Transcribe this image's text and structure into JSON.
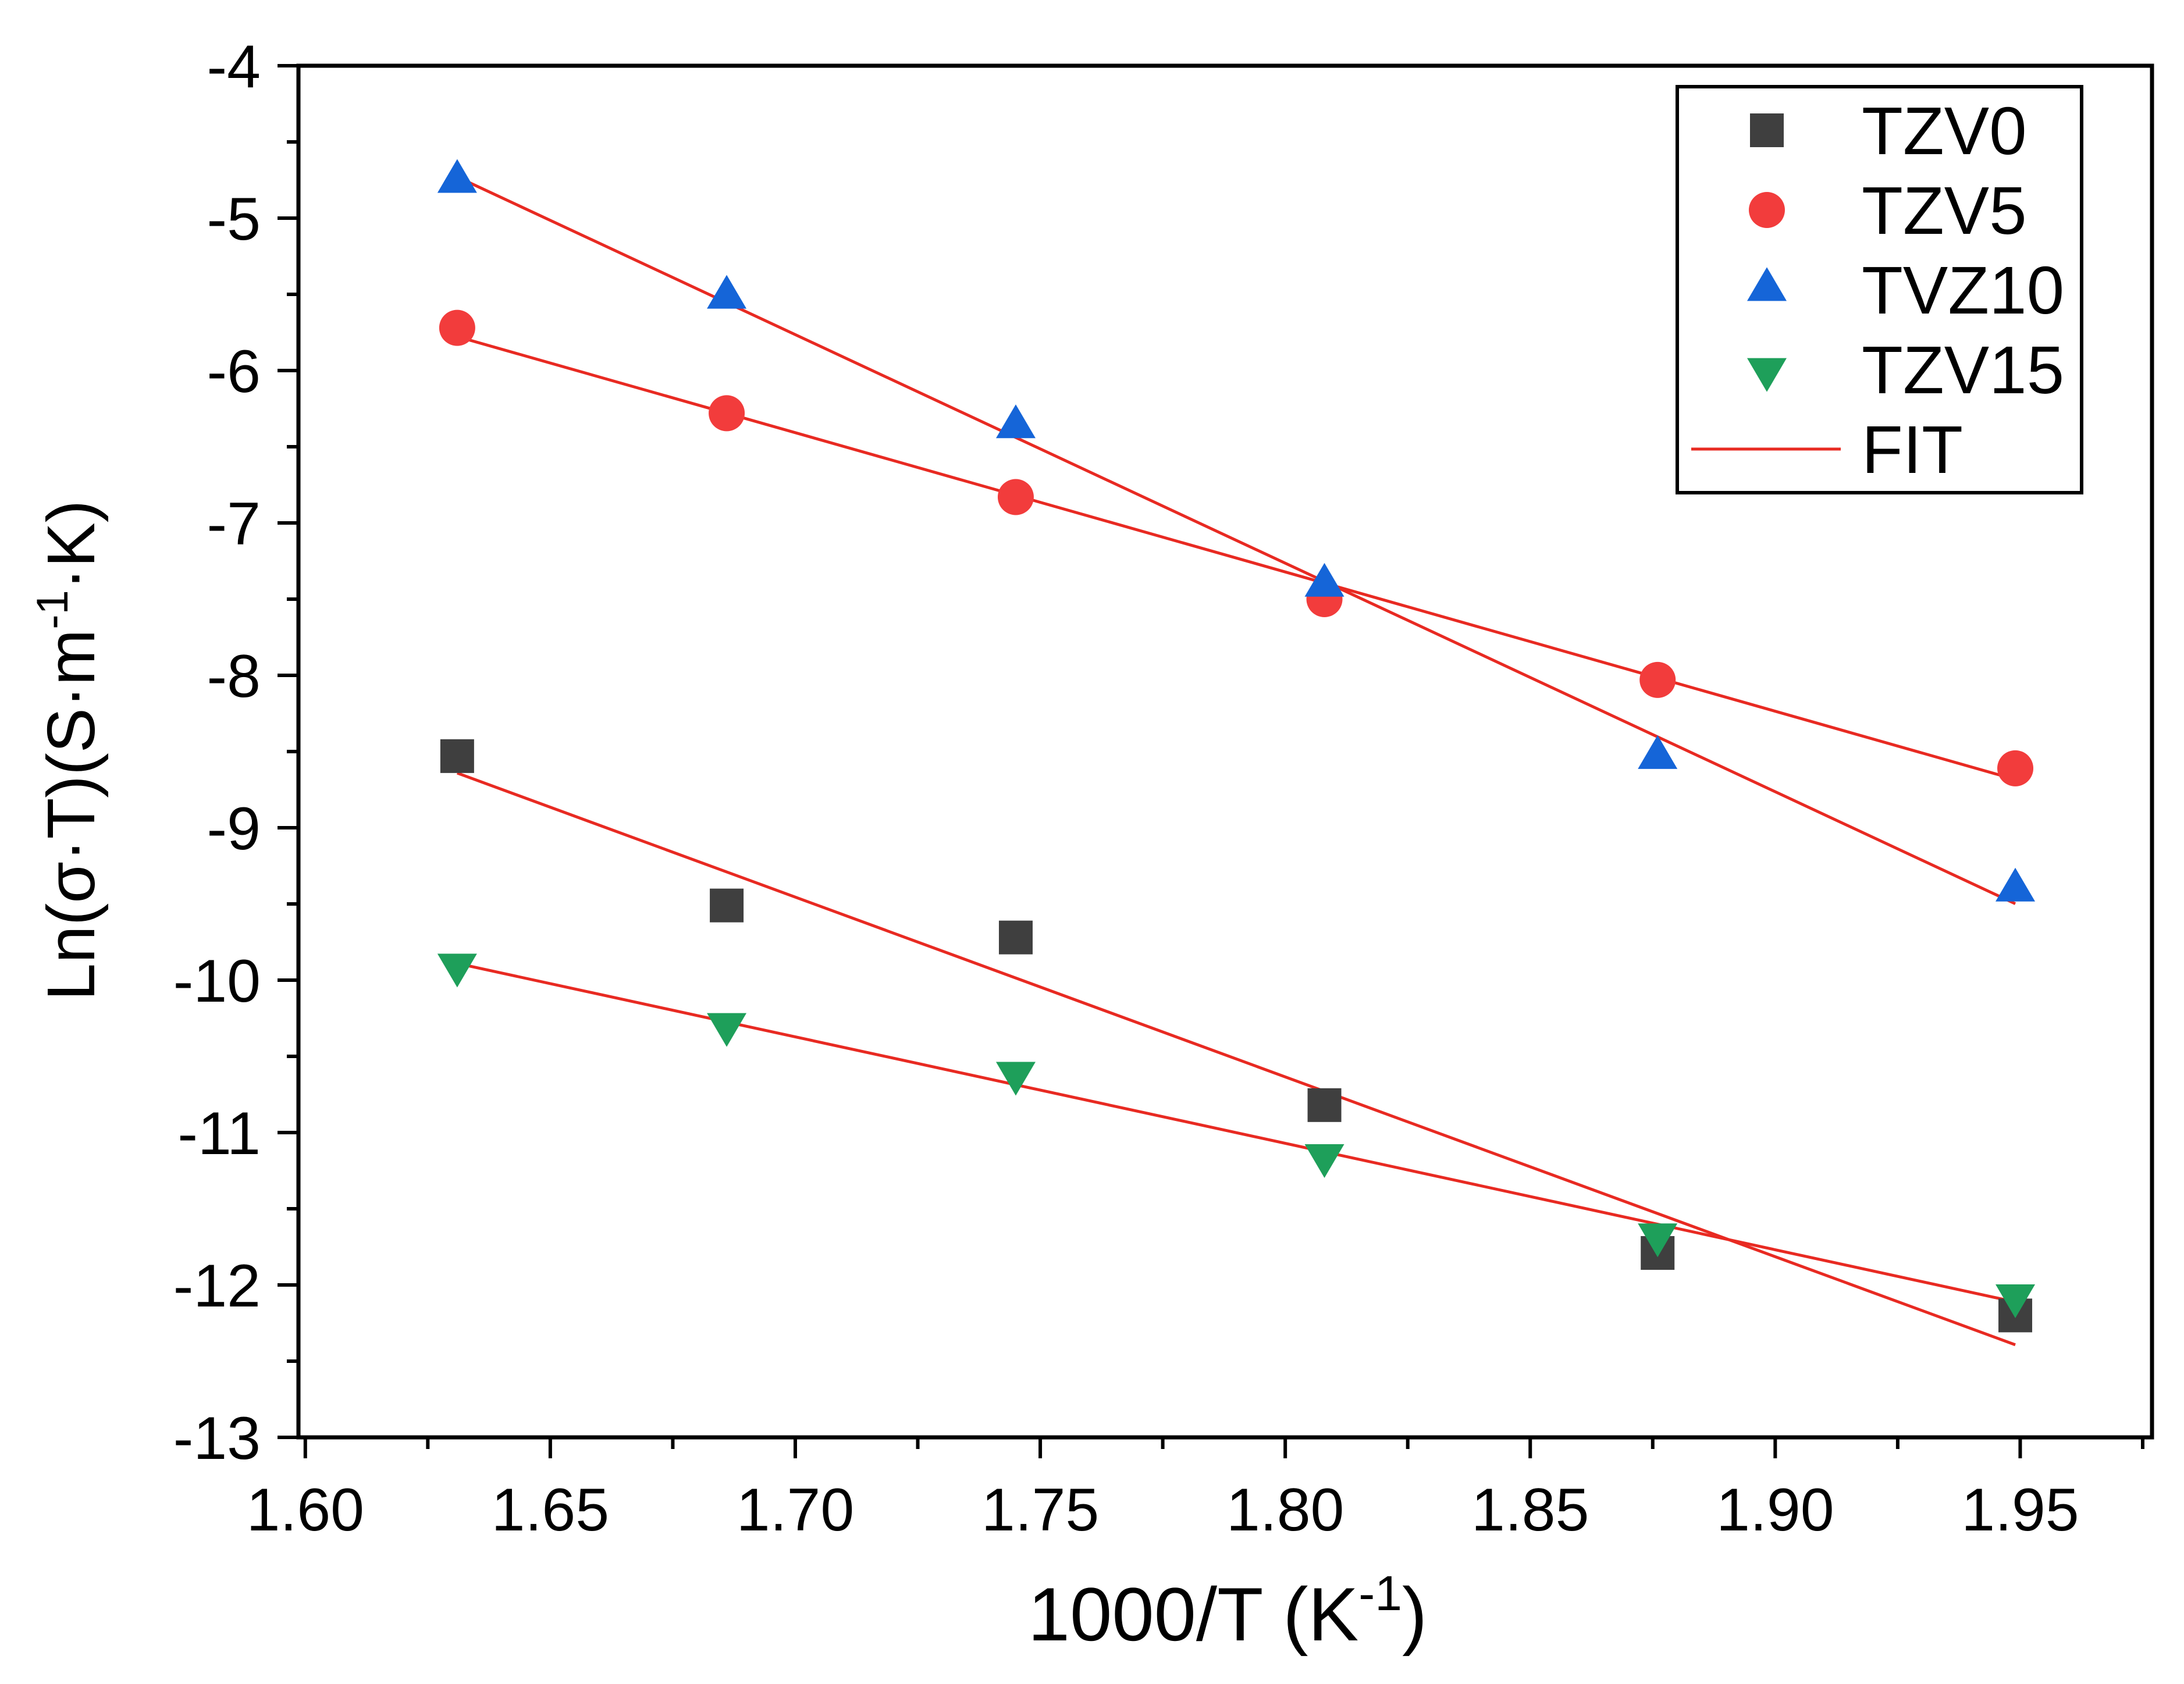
{
  "chart_data": {
    "type": "scatter",
    "xlabel": {
      "text": "1000/T (K",
      "sup": "-1",
      "end": ")"
    },
    "ylabel": {
      "text": "Ln(σ·T)(S·m",
      "sup": "-1",
      "end": "·K)"
    },
    "xlim": [
      1.5986,
      1.9769
    ],
    "ylim": [
      -13,
      -4
    ],
    "x_ticks": [
      1.6,
      1.65,
      1.7,
      1.75,
      1.8,
      1.85,
      1.9,
      1.95
    ],
    "x_tick_labels": [
      "1.60",
      "1.65",
      "1.70",
      "1.75",
      "1.80",
      "1.85",
      "1.90",
      "1.95"
    ],
    "x_minor_step": 0.025,
    "y_ticks": [
      -4,
      -5,
      -6,
      -7,
      -8,
      -9,
      -10,
      -11,
      -12,
      -13
    ],
    "y_tick_labels": [
      "-4",
      "-5",
      "-6",
      "-7",
      "-8",
      "-9",
      "-10",
      "-11",
      "-12",
      "-13"
    ],
    "y_minor_step": 0.5,
    "grid": false,
    "legend_position": "top-right",
    "x": [
      1.631,
      1.686,
      1.745,
      1.808,
      1.876,
      1.949
    ],
    "series": [
      {
        "name": "TZV0",
        "marker": "square",
        "color": "#3f3f3f",
        "values": [
          -8.53,
          -9.51,
          -9.72,
          -10.82,
          -11.79,
          -12.2
        ]
      },
      {
        "name": "TZV5",
        "marker": "circle",
        "color": "#f23c3c",
        "values": [
          -5.72,
          -6.28,
          -6.83,
          -7.5,
          -8.03,
          -8.61
        ]
      },
      {
        "name": "TVZ10",
        "marker": "triangle-up",
        "color": "#1565d8",
        "values": [
          -4.76,
          -5.52,
          -6.37,
          -7.41,
          -8.54,
          -9.41
        ]
      },
      {
        "name": "TZV15",
        "marker": "triangle-down",
        "color": "#1e9f5a",
        "values": [
          -9.9,
          -10.29,
          -10.61,
          -11.15,
          -11.67,
          -12.07
        ]
      }
    ],
    "fit": {
      "name": "FIT",
      "color": "#e82a22"
    }
  }
}
